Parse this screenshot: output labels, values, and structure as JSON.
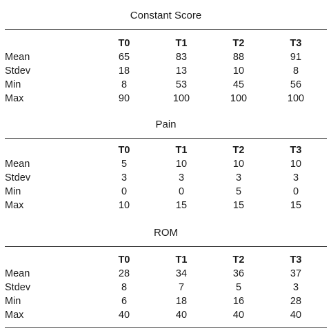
{
  "columns": [
    "T0",
    "T1",
    "T2",
    "T3"
  ],
  "sections": [
    {
      "title": "Constant Score",
      "rows": [
        {
          "label": "Mean",
          "values": [
            "65",
            "83",
            "88",
            "91"
          ]
        },
        {
          "label": "Stdev",
          "values": [
            "18",
            "13",
            "10",
            "8"
          ]
        },
        {
          "label": "Min",
          "values": [
            "8",
            "53",
            "45",
            "56"
          ]
        },
        {
          "label": "Max",
          "values": [
            "90",
            "100",
            "100",
            "100"
          ]
        }
      ]
    },
    {
      "title": "Pain",
      "rows": [
        {
          "label": "Mean",
          "values": [
            "5",
            "10",
            "10",
            "10"
          ]
        },
        {
          "label": "Stdev",
          "values": [
            "3",
            "3",
            "3",
            "3"
          ]
        },
        {
          "label": "Min",
          "values": [
            "0",
            "0",
            "5",
            "0"
          ]
        },
        {
          "label": "Max",
          "values": [
            "10",
            "15",
            "15",
            "15"
          ]
        }
      ]
    },
    {
      "title": "ROM",
      "rows": [
        {
          "label": "Mean",
          "values": [
            "28",
            "34",
            "36",
            "37"
          ]
        },
        {
          "label": "Stdev",
          "values": [
            "8",
            "7",
            "5",
            "3"
          ]
        },
        {
          "label": "Min",
          "values": [
            "6",
            "18",
            "16",
            "28"
          ]
        },
        {
          "label": "Max",
          "values": [
            "40",
            "40",
            "40",
            "40"
          ]
        }
      ]
    }
  ]
}
